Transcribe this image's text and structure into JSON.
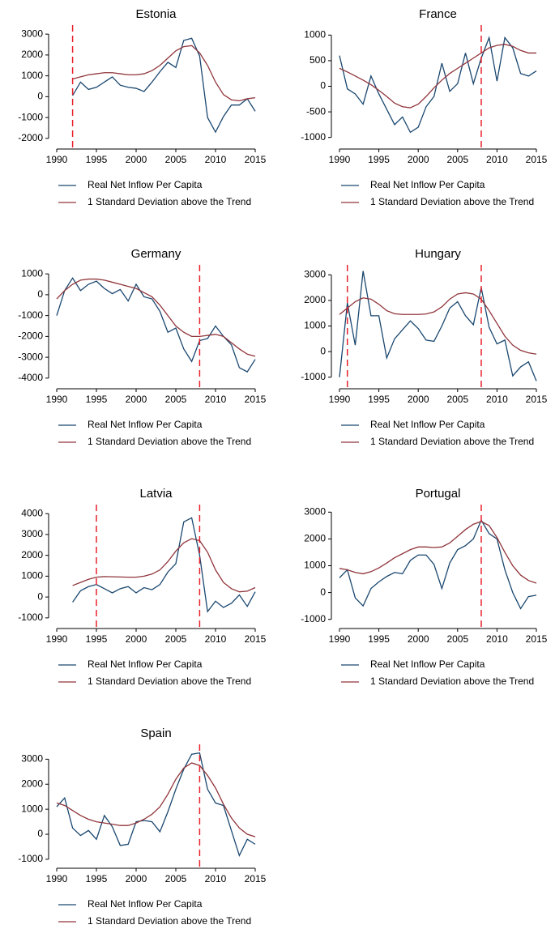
{
  "chart_data": [
    {
      "type": "line",
      "title": "Estonia",
      "x": [
        1992,
        1993,
        1994,
        1995,
        1996,
        1997,
        1998,
        1999,
        2000,
        2001,
        2002,
        2003,
        2004,
        2005,
        2006,
        2007,
        2008,
        2009,
        2010,
        2011,
        2012,
        2013,
        2014,
        2015
      ],
      "series": [
        {
          "name": "Real Net Inflow Per Capita",
          "color": "#1a476f",
          "values": [
            50,
            700,
            350,
            450,
            700,
            950,
            550,
            450,
            400,
            250,
            700,
            1200,
            1650,
            1400,
            2700,
            2800,
            1950,
            -1000,
            -1700,
            -950,
            -400,
            -400,
            -100,
            -700
          ]
        },
        {
          "name": "1 Standard Deviation above the Trend",
          "color": "#90353b",
          "values": [
            850,
            950,
            1050,
            1100,
            1150,
            1150,
            1100,
            1050,
            1050,
            1100,
            1250,
            1500,
            1850,
            2200,
            2400,
            2450,
            2100,
            1500,
            700,
            100,
            -150,
            -200,
            -100,
            -50
          ]
        }
      ],
      "xlim": [
        1990,
        2015
      ],
      "xticks": [
        1990,
        1995,
        2000,
        2005,
        2010,
        2015
      ],
      "ylim": [
        -2200,
        3200
      ],
      "yticks": [
        -2000,
        -1000,
        0,
        1000,
        2000,
        3000
      ],
      "vlines": [
        1992
      ],
      "vline_color": "#e8212b"
    },
    {
      "type": "line",
      "title": "France",
      "x": [
        1990,
        1991,
        1992,
        1993,
        1994,
        1995,
        1996,
        1997,
        1998,
        1999,
        2000,
        2001,
        2002,
        2003,
        2004,
        2005,
        2006,
        2007,
        2008,
        2009,
        2010,
        2011,
        2012,
        2013,
        2014,
        2015
      ],
      "series": [
        {
          "name": "Real Net Inflow Per Capita",
          "color": "#1a476f",
          "values": [
            600,
            -50,
            -150,
            -350,
            200,
            -150,
            -450,
            -750,
            -600,
            -900,
            -800,
            -400,
            -200,
            450,
            -100,
            50,
            650,
            50,
            550,
            950,
            100,
            950,
            750,
            250,
            200,
            300
          ]
        },
        {
          "name": "1 Standard Deviation above the Trend",
          "color": "#90353b",
          "values": [
            350,
            280,
            200,
            120,
            30,
            -80,
            -200,
            -330,
            -400,
            -420,
            -350,
            -200,
            -30,
            120,
            250,
            350,
            450,
            550,
            650,
            750,
            800,
            820,
            780,
            700,
            650,
            650
          ]
        }
      ],
      "xlim": [
        1990,
        2015
      ],
      "xticks": [
        1990,
        1995,
        2000,
        2005,
        2010,
        2015
      ],
      "ylim": [
        -1100,
        1100
      ],
      "yticks": [
        -1000,
        -500,
        0,
        500,
        1000
      ],
      "vlines": [
        2008
      ],
      "vline_color": "#e8212b"
    },
    {
      "type": "line",
      "title": "Germany",
      "x": [
        1990,
        1991,
        1992,
        1993,
        1994,
        1995,
        1996,
        1997,
        1998,
        1999,
        2000,
        2001,
        2002,
        2003,
        2004,
        2005,
        2006,
        2007,
        2008,
        2009,
        2010,
        2011,
        2012,
        2013,
        2014,
        2015
      ],
      "series": [
        {
          "name": "Real Net Inflow Per Capita",
          "color": "#1a476f",
          "values": [
            -1000,
            200,
            800,
            200,
            500,
            650,
            300,
            50,
            250,
            -300,
            500,
            -100,
            -200,
            -800,
            -1800,
            -1600,
            -2600,
            -3200,
            -2200,
            -2100,
            -1500,
            -2000,
            -2400,
            -3500,
            -3700,
            -3100
          ]
        },
        {
          "name": "1 Standard Deviation above the Trend",
          "color": "#90353b",
          "values": [
            -200,
            200,
            500,
            700,
            750,
            750,
            700,
            600,
            500,
            400,
            300,
            100,
            -100,
            -500,
            -1000,
            -1500,
            -1800,
            -2000,
            -2000,
            -1950,
            -1900,
            -2000,
            -2300,
            -2600,
            -2850,
            -2950
          ]
        }
      ],
      "xlim": [
        1990,
        2015
      ],
      "xticks": [
        1990,
        1995,
        2000,
        2005,
        2010,
        2015
      ],
      "ylim": [
        -4200,
        1200
      ],
      "yticks": [
        -4000,
        -3000,
        -2000,
        -1000,
        0,
        1000
      ],
      "vlines": [
        2008
      ],
      "vline_color": "#e8212b"
    },
    {
      "type": "line",
      "title": "Hungary",
      "x": [
        1990,
        1991,
        1992,
        1993,
        1994,
        1995,
        1996,
        1997,
        1998,
        1999,
        2000,
        2001,
        2002,
        2003,
        2004,
        2005,
        2006,
        2007,
        2008,
        2009,
        2010,
        2011,
        2012,
        2013,
        2014,
        2015
      ],
      "series": [
        {
          "name": "Real Net Inflow Per Capita",
          "color": "#1a476f",
          "values": [
            -1000,
            1900,
            250,
            3150,
            1400,
            1400,
            -250,
            500,
            850,
            1200,
            900,
            450,
            400,
            1000,
            1700,
            1950,
            1400,
            1050,
            2500,
            950,
            300,
            450,
            -950,
            -600,
            -400,
            -1150
          ]
        },
        {
          "name": "1 Standard Deviation above the Trend",
          "color": "#90353b",
          "values": [
            1450,
            1700,
            1950,
            2100,
            2050,
            1850,
            1600,
            1480,
            1450,
            1450,
            1450,
            1470,
            1550,
            1750,
            2050,
            2250,
            2300,
            2250,
            2050,
            1600,
            1100,
            600,
            250,
            50,
            -50,
            -100
          ]
        }
      ],
      "xlim": [
        1990,
        2015
      ],
      "xticks": [
        1990,
        1995,
        2000,
        2005,
        2010,
        2015
      ],
      "ylim": [
        -1200,
        3200
      ],
      "yticks": [
        -1000,
        0,
        1000,
        2000,
        3000
      ],
      "vlines": [
        1991,
        2008
      ],
      "vline_color": "#e8212b"
    },
    {
      "type": "line",
      "title": "Latvia",
      "x": [
        1992,
        1993,
        1994,
        1995,
        1996,
        1997,
        1998,
        1999,
        2000,
        2001,
        2002,
        2003,
        2004,
        2005,
        2006,
        2007,
        2008,
        2009,
        2010,
        2011,
        2012,
        2013,
        2014,
        2015
      ],
      "series": [
        {
          "name": "Real Net Inflow Per Capita",
          "color": "#1a476f",
          "values": [
            -250,
            300,
            500,
            600,
            400,
            200,
            400,
            500,
            200,
            450,
            350,
            600,
            1200,
            1600,
            3600,
            3800,
            2000,
            -700,
            -200,
            -500,
            -300,
            100,
            -450,
            250
          ]
        },
        {
          "name": "1 Standard Deviation above the Trend",
          "color": "#90353b",
          "values": [
            550,
            700,
            850,
            950,
            980,
            970,
            960,
            950,
            950,
            1000,
            1100,
            1300,
            1700,
            2200,
            2600,
            2800,
            2700,
            2150,
            1300,
            700,
            400,
            250,
            280,
            450
          ]
        }
      ],
      "xlim": [
        1990,
        2015
      ],
      "xticks": [
        1990,
        1995,
        2000,
        2005,
        2010,
        2015
      ],
      "ylim": [
        -1200,
        4200
      ],
      "yticks": [
        -1000,
        0,
        1000,
        2000,
        3000,
        4000
      ],
      "vlines": [
        1995,
        2008
      ],
      "vline_color": "#e8212b"
    },
    {
      "type": "line",
      "title": "Portugal",
      "x": [
        1990,
        1991,
        1992,
        1993,
        1994,
        1995,
        1996,
        1997,
        1998,
        1999,
        2000,
        2001,
        2002,
        2003,
        2004,
        2005,
        2006,
        2007,
        2008,
        2009,
        2010,
        2011,
        2012,
        2013,
        2014,
        2015
      ],
      "series": [
        {
          "name": "Real Net Inflow Per Capita",
          "color": "#1a476f",
          "values": [
            550,
            850,
            -200,
            -500,
            150,
            400,
            600,
            750,
            700,
            1200,
            1400,
            1400,
            1050,
            150,
            1100,
            1600,
            1750,
            2000,
            2700,
            2200,
            2000,
            850,
            0,
            -600,
            -150,
            -100
          ]
        },
        {
          "name": "1 Standard Deviation above the Trend",
          "color": "#90353b",
          "values": [
            900,
            850,
            750,
            700,
            780,
            920,
            1100,
            1300,
            1450,
            1600,
            1700,
            1700,
            1680,
            1700,
            1850,
            2100,
            2350,
            2550,
            2650,
            2500,
            2050,
            1500,
            1000,
            650,
            450,
            350
          ]
        }
      ],
      "xlim": [
        1990,
        2015
      ],
      "xticks": [
        1990,
        1995,
        2000,
        2005,
        2010,
        2015
      ],
      "ylim": [
        -1100,
        3100
      ],
      "yticks": [
        -1000,
        0,
        1000,
        2000,
        3000
      ],
      "vlines": [
        2008
      ],
      "vline_color": "#e8212b"
    },
    {
      "type": "line",
      "title": "Spain",
      "x": [
        1990,
        1991,
        1992,
        1993,
        1994,
        1995,
        1996,
        1997,
        1998,
        1999,
        2000,
        2001,
        2002,
        2003,
        2004,
        2005,
        2006,
        2007,
        2008,
        2009,
        2010,
        2011,
        2012,
        2013,
        2014,
        2015
      ],
      "series": [
        {
          "name": "Real Net Inflow Per Capita",
          "color": "#1a476f",
          "values": [
            1100,
            1450,
            250,
            -50,
            150,
            -200,
            750,
            300,
            -450,
            -400,
            500,
            550,
            500,
            100,
            900,
            1800,
            2600,
            3200,
            3250,
            1800,
            1250,
            1150,
            150,
            -850,
            -200,
            -400
          ]
        },
        {
          "name": "1 Standard Deviation above the Trend",
          "color": "#90353b",
          "values": [
            1250,
            1150,
            950,
            750,
            600,
            500,
            450,
            400,
            350,
            350,
            450,
            600,
            800,
            1100,
            1600,
            2200,
            2650,
            2850,
            2750,
            2350,
            1850,
            1200,
            650,
            250,
            0,
            -100
          ]
        }
      ],
      "xlim": [
        1990,
        2015
      ],
      "xticks": [
        1990,
        1995,
        2000,
        2005,
        2010,
        2015
      ],
      "ylim": [
        -1100,
        3400
      ],
      "yticks": [
        -1000,
        0,
        1000,
        2000,
        3000
      ],
      "vlines": [
        2008
      ],
      "vline_color": "#e8212b"
    }
  ]
}
